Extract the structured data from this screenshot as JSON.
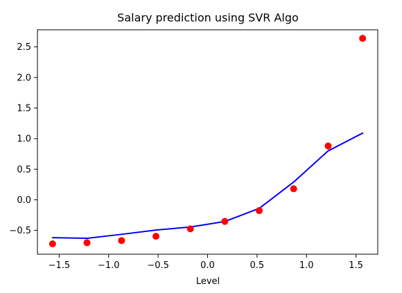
{
  "chart_data": {
    "type": "scatter",
    "title": "Salary prediction using SVR Algo",
    "xlabel": "Level",
    "ylabel": "",
    "xlim": [
      -1.72,
      1.72
    ],
    "ylim": [
      -0.89,
      2.78
    ],
    "xticks": [
      -1.5,
      -1.0,
      -0.5,
      0.0,
      0.5,
      1.0,
      1.5
    ],
    "xtick_labels": [
      "−1.5",
      "−1.0",
      "−0.5",
      "0.0",
      "0.5",
      "1.0",
      "1.5"
    ],
    "yticks": [
      -0.5,
      0.0,
      0.5,
      1.0,
      1.5,
      2.0,
      2.5
    ],
    "ytick_labels": [
      "−0.5",
      "0.0",
      "0.5",
      "1.0",
      "1.5",
      "2.0",
      "2.5"
    ],
    "grid": false,
    "series": [
      {
        "kind": "scatter",
        "color": "#ff0000",
        "x": [
          -1.567,
          -1.219,
          -0.87,
          -0.522,
          -0.174,
          0.174,
          0.522,
          0.87,
          1.219,
          1.567
        ],
        "y": [
          -0.72,
          -0.702,
          -0.667,
          -0.597,
          -0.475,
          -0.354,
          -0.177,
          0.18,
          0.88,
          2.64
        ]
      },
      {
        "kind": "line",
        "color": "#0000ff",
        "x": [
          -1.567,
          -1.219,
          -0.87,
          -0.522,
          -0.174,
          0.174,
          0.522,
          0.87,
          1.219,
          1.567
        ],
        "y": [
          -0.62,
          -0.63,
          -0.565,
          -0.495,
          -0.445,
          -0.355,
          -0.14,
          0.29,
          0.8,
          1.09
        ]
      }
    ]
  }
}
